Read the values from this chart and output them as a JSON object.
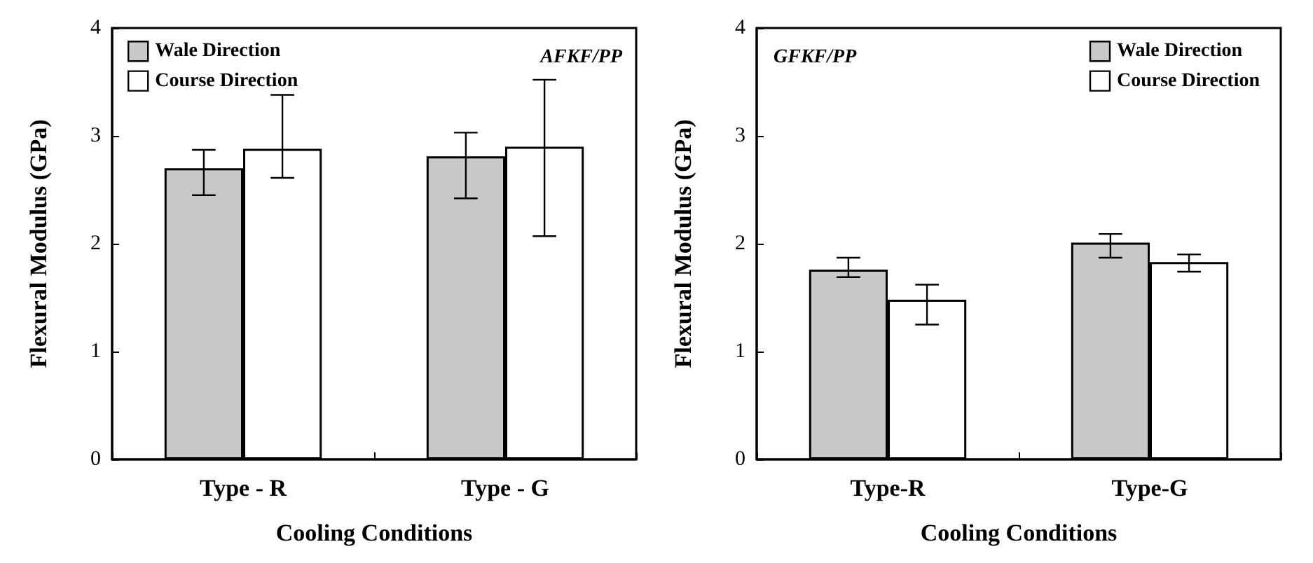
{
  "chart_data": [
    {
      "type": "bar",
      "xlabel": "Cooling Conditions",
      "ylabel": "Flexural Modulus (GPa)",
      "annotations": [
        "AFKF/PP"
      ],
      "categories": [
        "Type - R",
        "Type - G"
      ],
      "series": [
        {
          "name": "Wale Direction",
          "color": "#c8c8c8",
          "values": [
            2.7,
            2.81
          ],
          "errors": [
            [
              2.45,
              2.87
            ],
            [
              2.42,
              3.03
            ]
          ]
        },
        {
          "name": "Course Direction",
          "color": "#ffffff",
          "values": [
            2.88,
            2.9
          ],
          "errors": [
            [
              2.61,
              3.38
            ],
            [
              2.07,
              3.52
            ]
          ]
        }
      ],
      "ylim": [
        0,
        4
      ],
      "yticks": [
        0,
        1,
        2,
        3,
        4
      ],
      "grid": false,
      "legend": "top left"
    },
    {
      "type": "bar",
      "xlabel": "Cooling Conditions",
      "ylabel": "Flexural Modulus (GPa)",
      "annotations": [
        "GFKF/PP"
      ],
      "categories": [
        "Type-R",
        "Type-G"
      ],
      "series": [
        {
          "name": "Wale Direction",
          "color": "#c8c8c8",
          "values": [
            1.76,
            2.01
          ],
          "errors": [
            [
              1.69,
              1.87
            ],
            [
              1.87,
              2.09
            ]
          ]
        },
        {
          "name": "Course Direction",
          "color": "#ffffff",
          "values": [
            1.48,
            1.83
          ],
          "errors": [
            [
              1.25,
              1.62
            ],
            [
              1.74,
              1.9
            ]
          ]
        }
      ],
      "ylim": [
        0,
        4
      ],
      "yticks": [
        0,
        1,
        2,
        3,
        4
      ],
      "grid": false,
      "legend": "top right"
    }
  ]
}
